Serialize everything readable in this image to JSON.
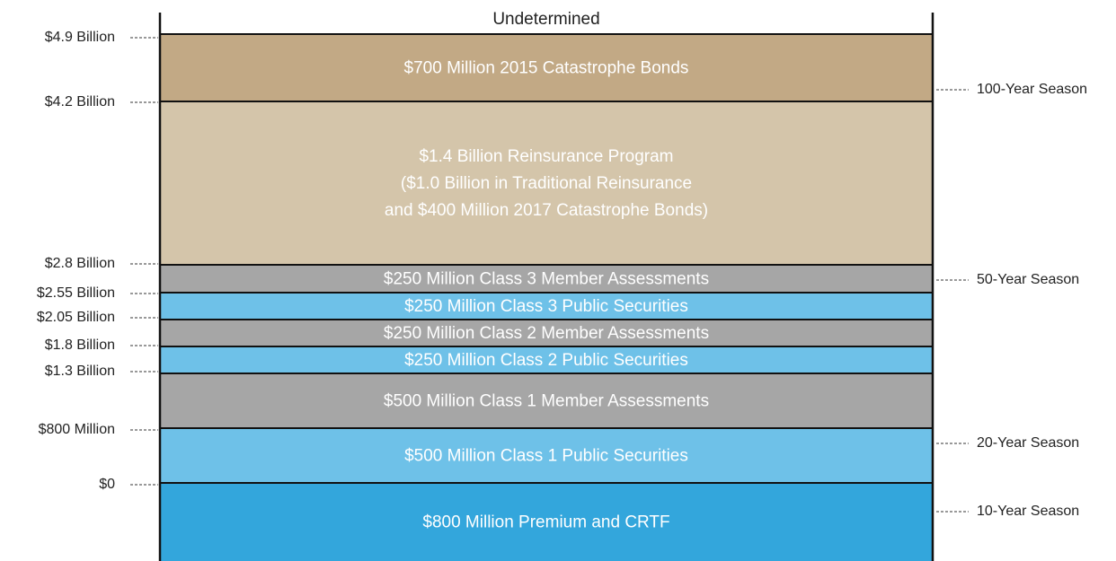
{
  "top_label": "Undetermined",
  "layers": [
    {
      "lines": [
        "$700 Million 2015 Catastrophe Bonds"
      ],
      "color": "#c2a985"
    },
    {
      "lines": [
        "$1.4 Billion Reinsurance Program",
        "($1.0 Billion in Traditional Reinsurance",
        "and $400 Million 2017 Catastrophe Bonds)"
      ],
      "color": "#d4c5aa"
    },
    {
      "lines": [
        "$250 Million Class 3 Member Assessments"
      ],
      "color": "#a6a6a6"
    },
    {
      "lines": [
        "$250 Million Class 3 Public Securities"
      ],
      "color": "#6ec1e8"
    },
    {
      "lines": [
        "$250 Million Class 2 Member Assessments"
      ],
      "color": "#a6a6a6"
    },
    {
      "lines": [
        "$250 Million Class 2 Public Securities"
      ],
      "color": "#6ec1e8"
    },
    {
      "lines": [
        "$500 Million Class 1 Member Assessments"
      ],
      "color": "#a6a6a6"
    },
    {
      "lines": [
        "$500 Million Class 1 Public Securities"
      ],
      "color": "#6ec1e8"
    },
    {
      "lines": [
        "$800 Million Premium and CRTF"
      ],
      "color": "#33a6dc"
    }
  ],
  "left_labels": [
    "$4.9 Billion",
    "$4.2 Billion",
    "$2.8 Billion",
    "$2.55 Billion",
    "$2.05 Billion",
    "$1.8 Billion",
    "$1.3 Billion",
    "$800 Million",
    "$0"
  ],
  "right_labels": [
    "100-Year Season",
    "50-Year Season",
    "20-Year Season",
    "10-Year Season"
  ]
}
